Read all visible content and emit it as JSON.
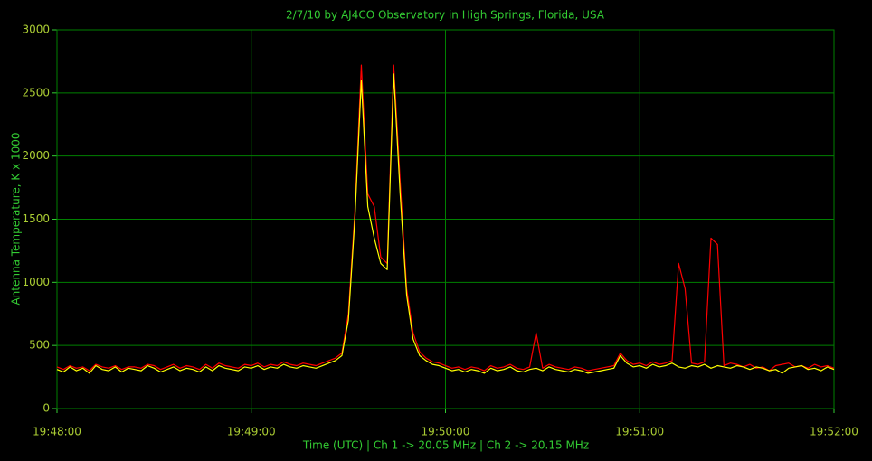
{
  "chart_data": {
    "type": "line",
    "title": "2/7/10  by  AJ4CO Observatory  in  High Springs, Florida, USA",
    "x_label": "Time (UTC)  |  Ch 1 -> 20.05 MHz  |  Ch 2 -> 20.15 MHz",
    "y_label": "Antenna Temperature, K x 1000",
    "x": [
      "19:48:00",
      "19:48:02",
      "19:48:04",
      "19:48:06",
      "19:48:08",
      "19:48:10",
      "19:48:12",
      "19:48:14",
      "19:48:16",
      "19:48:18",
      "19:48:20",
      "19:48:22",
      "19:48:24",
      "19:48:26",
      "19:48:28",
      "19:48:30",
      "19:48:32",
      "19:48:34",
      "19:48:36",
      "19:48:38",
      "19:48:40",
      "19:48:42",
      "19:48:44",
      "19:48:46",
      "19:48:48",
      "19:48:50",
      "19:48:52",
      "19:48:54",
      "19:48:56",
      "19:48:58",
      "19:49:00",
      "19:49:02",
      "19:49:04",
      "19:49:06",
      "19:49:08",
      "19:49:10",
      "19:49:12",
      "19:49:14",
      "19:49:16",
      "19:49:18",
      "19:49:20",
      "19:49:22",
      "19:49:24",
      "19:49:26",
      "19:49:28",
      "19:49:30",
      "19:49:32",
      "19:49:34",
      "19:49:36",
      "19:49:38",
      "19:49:40",
      "19:49:42",
      "19:49:44",
      "19:49:46",
      "19:49:48",
      "19:49:50",
      "19:49:52",
      "19:49:54",
      "19:49:56",
      "19:49:58",
      "19:50:00",
      "19:50:02",
      "19:50:04",
      "19:50:06",
      "19:50:08",
      "19:50:10",
      "19:50:12",
      "19:50:14",
      "19:50:16",
      "19:50:18",
      "19:50:20",
      "19:50:22",
      "19:50:24",
      "19:50:26",
      "19:50:28",
      "19:50:30",
      "19:50:32",
      "19:50:34",
      "19:50:36",
      "19:50:38",
      "19:50:40",
      "19:50:42",
      "19:50:44",
      "19:50:46",
      "19:50:48",
      "19:50:50",
      "19:50:52",
      "19:50:54",
      "19:50:56",
      "19:50:58",
      "19:51:00",
      "19:51:02",
      "19:51:04",
      "19:51:06",
      "19:51:08",
      "19:51:10",
      "19:51:12",
      "19:51:14",
      "19:51:16",
      "19:51:18",
      "19:51:20",
      "19:51:22",
      "19:51:24",
      "19:51:26",
      "19:51:28",
      "19:51:30",
      "19:51:32",
      "19:51:34",
      "19:51:36",
      "19:51:38",
      "19:51:40",
      "19:51:42",
      "19:51:44",
      "19:51:46",
      "19:51:48",
      "19:51:50",
      "19:51:52",
      "19:51:54",
      "19:51:56",
      "19:51:58",
      "19:52:00"
    ],
    "series": [
      {
        "name": "Ch 1",
        "color": "#ff0000",
        "values": [
          330,
          310,
          340,
          320,
          330,
          300,
          350,
          330,
          320,
          340,
          310,
          330,
          330,
          320,
          350,
          340,
          310,
          330,
          350,
          320,
          340,
          330,
          310,
          350,
          320,
          360,
          340,
          330,
          320,
          350,
          340,
          360,
          330,
          350,
          340,
          370,
          350,
          340,
          360,
          350,
          340,
          360,
          380,
          400,
          440,
          750,
          1550,
          2720,
          1700,
          1600,
          1200,
          1150,
          2720,
          1800,
          950,
          600,
          450,
          400,
          370,
          360,
          340,
          320,
          330,
          310,
          330,
          320,
          300,
          340,
          320,
          330,
          350,
          320,
          310,
          330,
          600,
          320,
          350,
          330,
          320,
          310,
          330,
          320,
          300,
          310,
          320,
          330,
          340,
          440,
          380,
          350,
          360,
          340,
          370,
          350,
          360,
          380,
          1150,
          950,
          360,
          350,
          370,
          1350,
          1300,
          340,
          360,
          350,
          330,
          350,
          320,
          330,
          300,
          340,
          350,
          360,
          330,
          340,
          320,
          350,
          330,
          340,
          320
        ]
      },
      {
        "name": "Ch 2",
        "color": "#ffff00",
        "values": [
          310,
          290,
          330,
          300,
          320,
          280,
          340,
          310,
          300,
          330,
          290,
          320,
          310,
          300,
          340,
          320,
          290,
          310,
          330,
          300,
          320,
          310,
          290,
          330,
          300,
          340,
          320,
          310,
          300,
          330,
          320,
          340,
          310,
          330,
          320,
          350,
          330,
          320,
          340,
          330,
          320,
          340,
          360,
          380,
          420,
          700,
          1500,
          2600,
          1600,
          1350,
          1150,
          1100,
          2650,
          1700,
          900,
          550,
          420,
          380,
          350,
          340,
          320,
          300,
          310,
          290,
          310,
          300,
          280,
          320,
          300,
          310,
          330,
          300,
          290,
          310,
          320,
          300,
          330,
          310,
          300,
          290,
          310,
          300,
          280,
          290,
          300,
          310,
          320,
          420,
          360,
          330,
          340,
          320,
          350,
          330,
          340,
          360,
          330,
          320,
          340,
          330,
          350,
          320,
          340,
          330,
          320,
          340,
          330,
          310,
          330,
          320,
          300,
          310,
          280,
          320,
          330,
          340,
          310,
          320,
          300,
          330,
          310
        ]
      }
    ],
    "xlim": [
      "19:48:00",
      "19:52:00"
    ],
    "xticks": [
      "19:48:00",
      "19:49:00",
      "19:50:00",
      "19:51:00",
      "19:52:00"
    ],
    "ylim": [
      0,
      3000
    ],
    "yticks": [
      0,
      500,
      1000,
      1500,
      2000,
      2500,
      3000
    ],
    "grid": true
  }
}
